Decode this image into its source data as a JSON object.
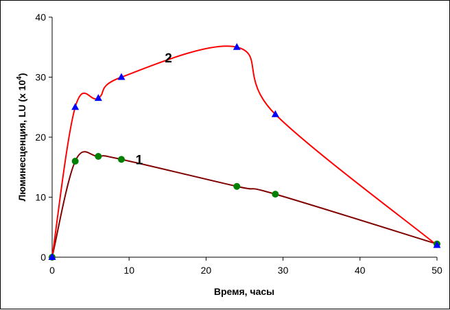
{
  "chart_data": {
    "type": "line",
    "xlabel": "Время, часы",
    "ylabel_main": "Люминесценция, LU (х 10",
    "ylabel_sup": "4",
    "ylabel_end": ")",
    "xlim": [
      0,
      50
    ],
    "ylim": [
      0,
      40
    ],
    "xticks": [
      0,
      10,
      20,
      30,
      40,
      50
    ],
    "yticks": [
      0,
      10,
      20,
      30,
      40
    ],
    "grid": false,
    "legend": "none",
    "series": [
      {
        "name": "1",
        "line_color": "#800000",
        "marker": "circle",
        "marker_color": "#008000",
        "x": [
          0,
          3,
          6,
          9,
          24,
          29,
          50
        ],
        "y": [
          0,
          16,
          16.8,
          16.3,
          11.8,
          10.5,
          2.2
        ]
      },
      {
        "name": "2",
        "line_color": "#ff0000",
        "marker": "triangle",
        "marker_color": "#0000ff",
        "x": [
          0,
          3,
          6,
          9,
          24,
          29,
          50
        ],
        "y": [
          0,
          25,
          26.5,
          30,
          35,
          23.8,
          2
        ]
      }
    ]
  }
}
